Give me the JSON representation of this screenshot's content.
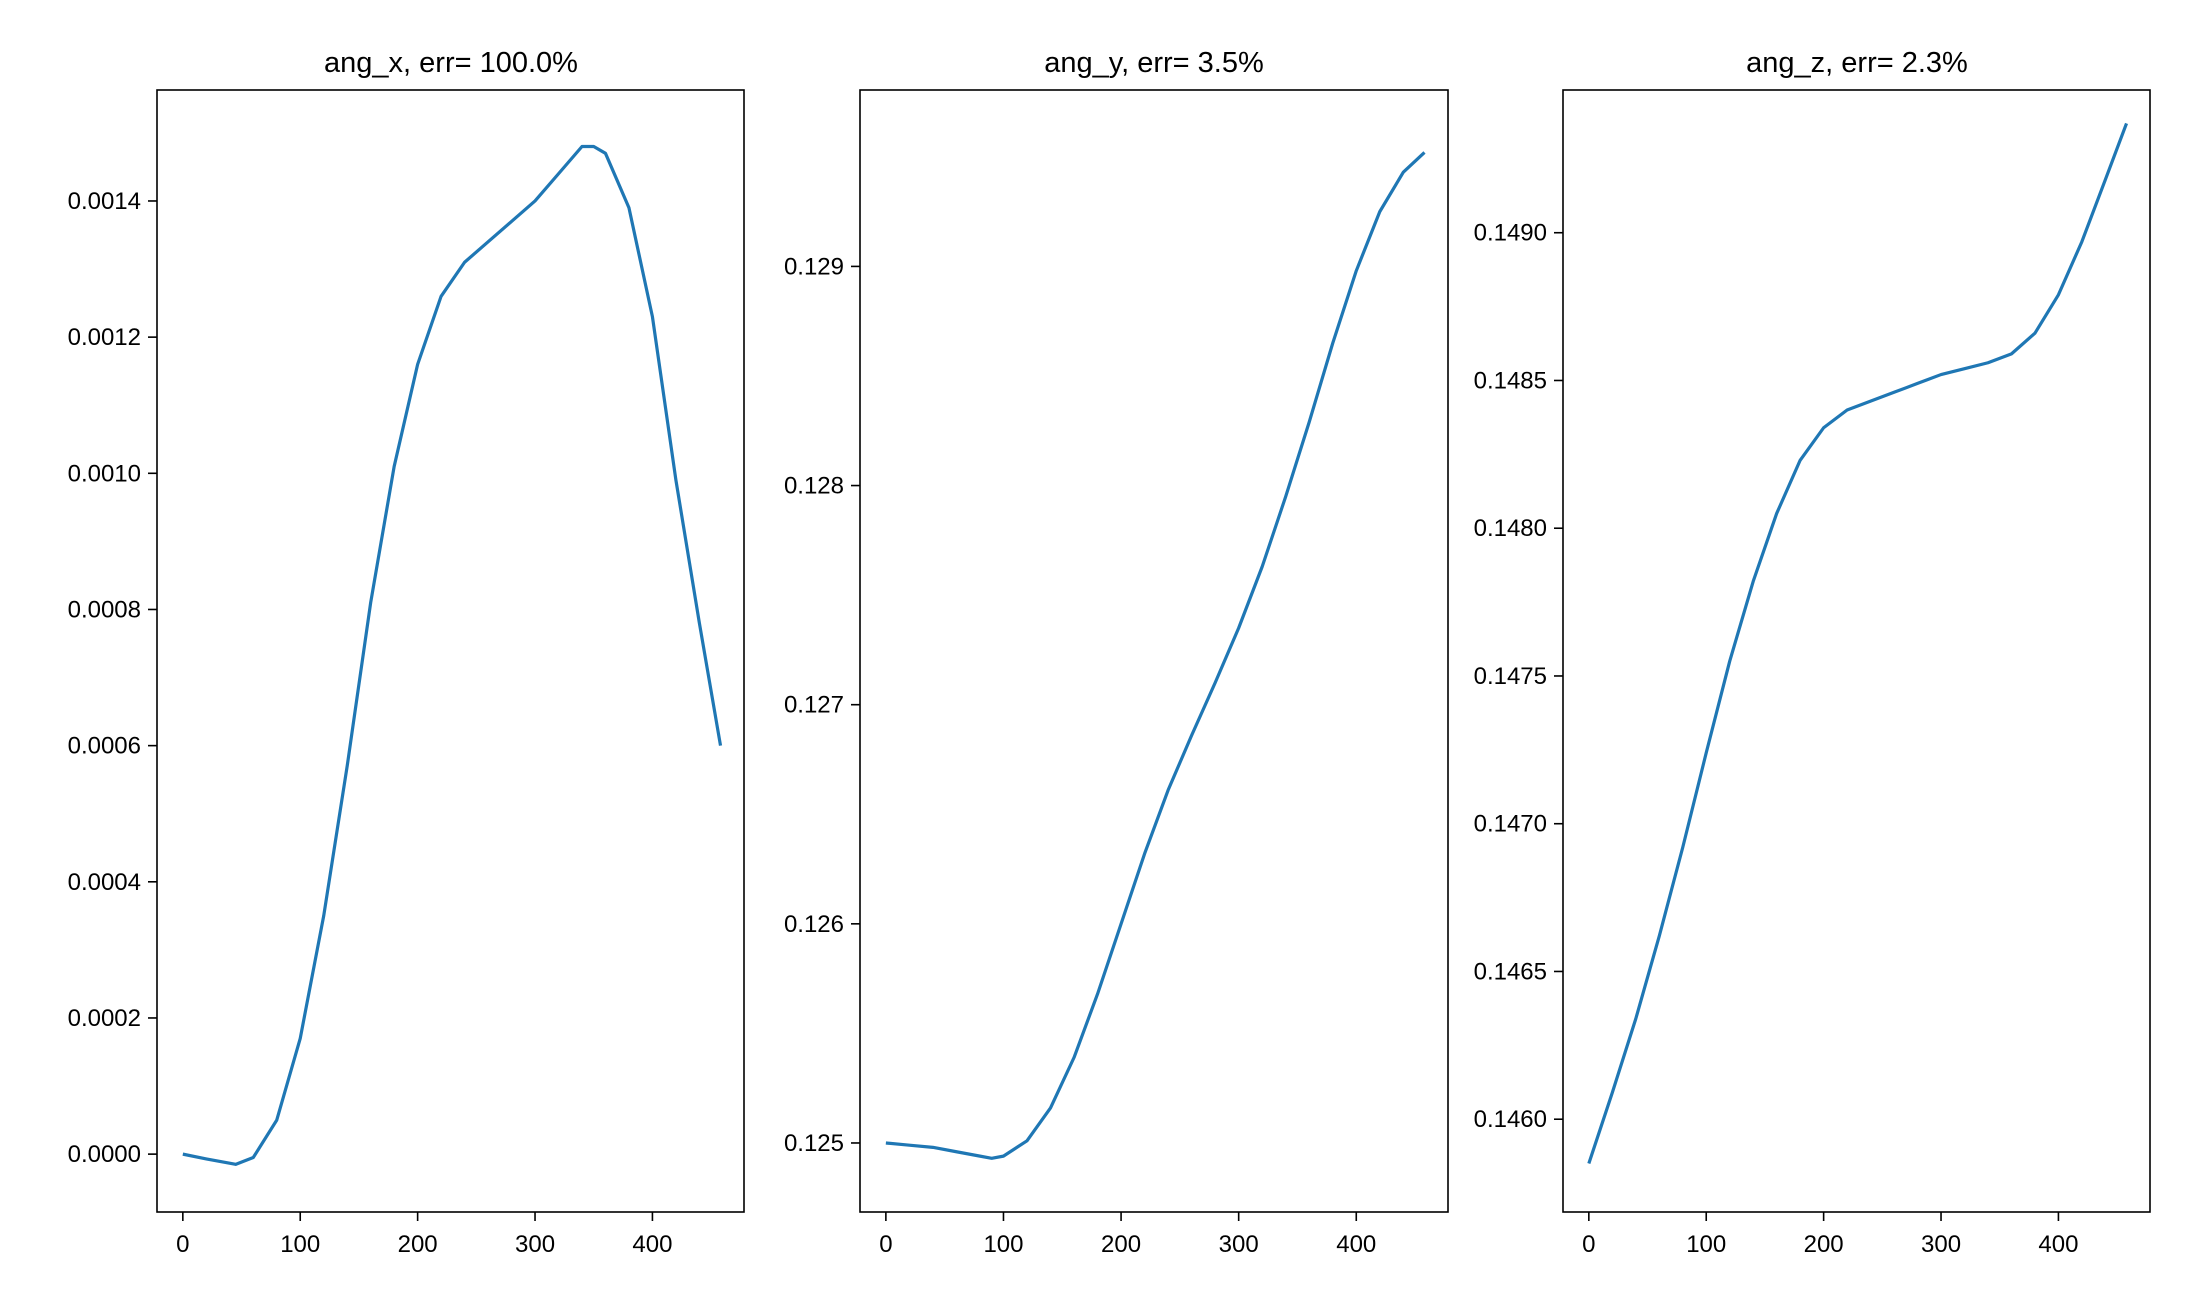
{
  "chart_data": [
    {
      "type": "line",
      "title": "ang_x, err= 100.0%",
      "xlim": [
        -22,
        478
      ],
      "ylim": [
        -8.5e-05,
        0.001563
      ],
      "xticks": [
        0,
        100,
        200,
        300,
        400
      ],
      "xtick_labels": [
        "0",
        "100",
        "200",
        "300",
        "400"
      ],
      "yticks": [
        0.0,
        0.0002,
        0.0004,
        0.0006,
        0.0008,
        0.001,
        0.0012,
        0.0014
      ],
      "ytick_labels": [
        "0.0000",
        "0.0002",
        "0.0004",
        "0.0006",
        "0.0008",
        "0.0010",
        "0.0012",
        "0.0014"
      ],
      "grid": false,
      "series": [
        {
          "color": "#1f77b4",
          "x": [
            0,
            20,
            45,
            60,
            80,
            100,
            120,
            140,
            160,
            180,
            200,
            220,
            240,
            260,
            280,
            300,
            320,
            340,
            350,
            360,
            380,
            400,
            420,
            440,
            458
          ],
          "y": [
            0.0,
            -7e-06,
            -1.5e-05,
            -5e-06,
            5e-05,
            0.00017,
            0.00035,
            0.00057,
            0.00081,
            0.00101,
            0.00116,
            0.00126,
            0.00131,
            0.00134,
            0.00137,
            0.0014,
            0.00144,
            0.00148,
            0.00148,
            0.00147,
            0.00139,
            0.00123,
            0.00099,
            0.00078,
            0.0006
          ]
        }
      ]
    },
    {
      "type": "line",
      "title": "ang_y, err= 3.5%",
      "xlim": [
        -22,
        478
      ],
      "ylim": [
        0.124685,
        0.129805
      ],
      "xticks": [
        0,
        100,
        200,
        300,
        400
      ],
      "xtick_labels": [
        "0",
        "100",
        "200",
        "300",
        "400"
      ],
      "yticks": [
        0.125,
        0.126,
        0.127,
        0.128,
        0.129
      ],
      "ytick_labels": [
        "0.125",
        "0.126",
        "0.127",
        "0.128",
        "0.129"
      ],
      "grid": false,
      "series": [
        {
          "color": "#1f77b4",
          "x": [
            0,
            20,
            40,
            60,
            80,
            90,
            100,
            120,
            140,
            160,
            180,
            200,
            220,
            240,
            260,
            280,
            300,
            320,
            340,
            360,
            380,
            400,
            420,
            440,
            458
          ],
          "y": [
            0.125,
            0.12499,
            0.12498,
            0.12496,
            0.12494,
            0.12493,
            0.12494,
            0.12501,
            0.12516,
            0.12539,
            0.12568,
            0.126,
            0.12632,
            0.12661,
            0.12686,
            0.1271,
            0.12735,
            0.12763,
            0.12795,
            0.12829,
            0.12865,
            0.12898,
            0.12925,
            0.12943,
            0.12952
          ]
        }
      ]
    },
    {
      "type": "line",
      "title": "ang_z, err= 2.3%",
      "xlim": [
        -22,
        478
      ],
      "ylim": [
        0.145686,
        0.149483
      ],
      "xticks": [
        0,
        100,
        200,
        300,
        400
      ],
      "xtick_labels": [
        "0",
        "100",
        "200",
        "300",
        "400"
      ],
      "yticks": [
        0.146,
        0.1465,
        0.147,
        0.1475,
        0.148,
        0.1485,
        0.149
      ],
      "ytick_labels": [
        "0.1460",
        "0.1465",
        "0.1470",
        "0.1475",
        "0.1480",
        "0.1485",
        "0.1490"
      ],
      "grid": false,
      "series": [
        {
          "color": "#1f77b4",
          "x": [
            0,
            20,
            40,
            60,
            80,
            100,
            120,
            140,
            160,
            180,
            200,
            220,
            240,
            260,
            280,
            300,
            320,
            340,
            360,
            380,
            400,
            420,
            440,
            458
          ],
          "y": [
            0.14585,
            0.14609,
            0.14634,
            0.14662,
            0.14692,
            0.14724,
            0.14755,
            0.14782,
            0.14805,
            0.14823,
            0.14834,
            0.1484,
            0.14843,
            0.14846,
            0.14849,
            0.14852,
            0.14854,
            0.14856,
            0.14859,
            0.14866,
            0.14879,
            0.14897,
            0.14918,
            0.14937
          ]
        }
      ]
    }
  ]
}
